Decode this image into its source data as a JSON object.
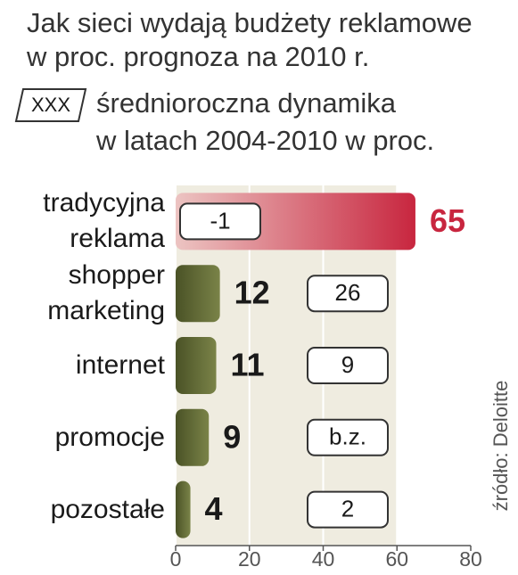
{
  "chart_data": {
    "type": "bar",
    "title": [
      "Jak sieci wydają budżety reklamowe",
      "w proc. prognoza na 2010 r."
    ],
    "categories": [
      "tradycyjna reklama",
      "shopper marketing",
      "internet",
      "promocje",
      "pozostałe"
    ],
    "values": [
      65,
      12,
      11,
      9,
      4
    ],
    "colors": [
      "#c8263f",
      "#5b6331",
      "#5b6331",
      "#5b6331",
      "#5b6331"
    ],
    "label_colors": [
      "#c8263f",
      "#1a1a1a",
      "#1a1a1a",
      "#1a1a1a",
      "#1a1a1a"
    ],
    "dynamics": {
      "key": "XXX",
      "label": [
        "średnioroczna dynamika",
        "w latach 2004-2010 w proc."
      ],
      "values": [
        -1,
        26,
        9,
        null,
        2
      ],
      "value_labels": [
        "-1",
        "26",
        "9",
        "b.z.",
        "2"
      ]
    },
    "xlim": [
      0,
      80
    ],
    "xticks": [
      0,
      20,
      40,
      60,
      80
    ],
    "source": "źródło: Deloitte"
  }
}
